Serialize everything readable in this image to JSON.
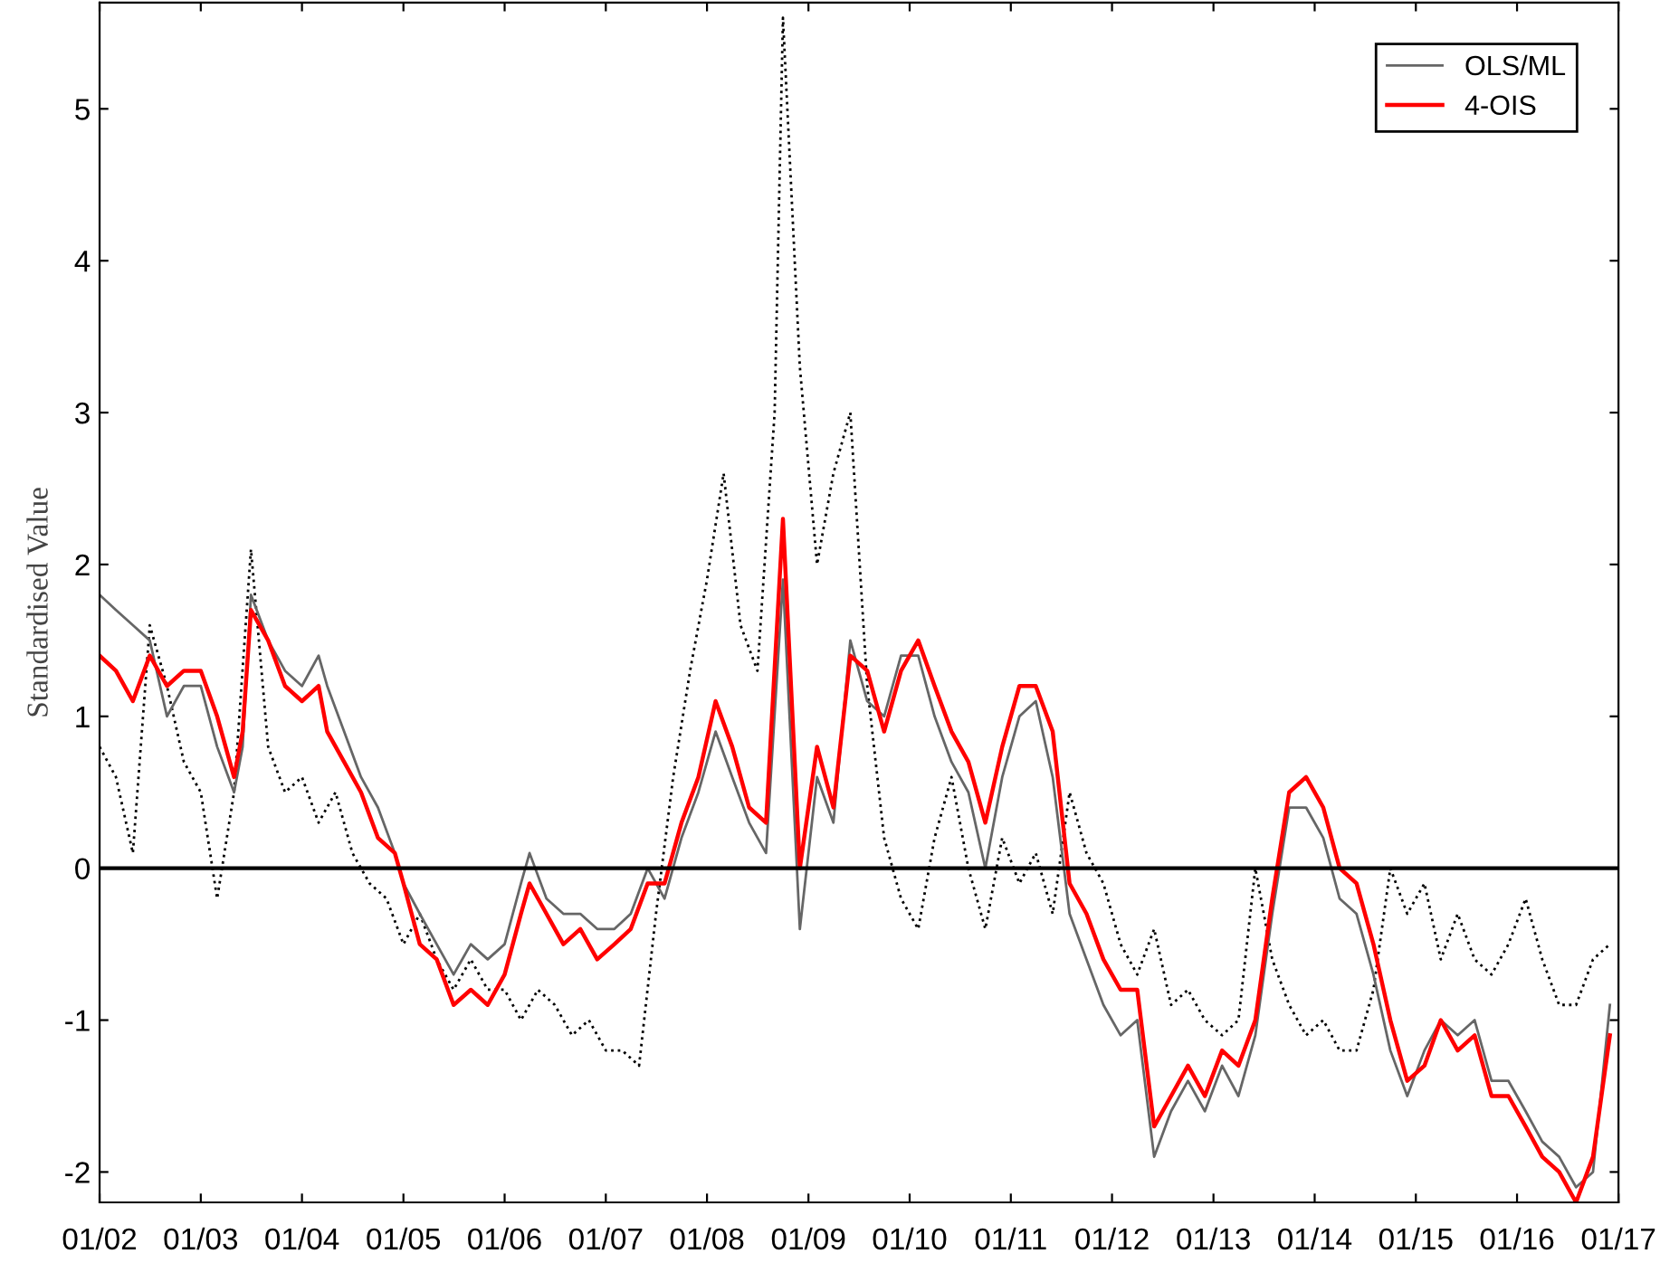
{
  "chart_data": {
    "type": "line",
    "ylabel": "Standardised Value",
    "xlim": [
      "2002-01-01",
      "2017-01-01"
    ],
    "ylim": [
      -2.2,
      5.7
    ],
    "xticks": [
      {
        "value": "2002-01-01",
        "label": "01/02"
      },
      {
        "value": "2003-01-01",
        "label": "01/03"
      },
      {
        "value": "2004-01-01",
        "label": "01/04"
      },
      {
        "value": "2005-01-01",
        "label": "01/05"
      },
      {
        "value": "2006-01-01",
        "label": "01/06"
      },
      {
        "value": "2007-01-01",
        "label": "01/07"
      },
      {
        "value": "2008-01-01",
        "label": "01/08"
      },
      {
        "value": "2009-01-01",
        "label": "01/09"
      },
      {
        "value": "2010-01-01",
        "label": "01/10"
      },
      {
        "value": "2011-01-01",
        "label": "01/11"
      },
      {
        "value": "2012-01-01",
        "label": "01/12"
      },
      {
        "value": "2013-01-01",
        "label": "01/13"
      },
      {
        "value": "2014-01-01",
        "label": "01/14"
      },
      {
        "value": "2015-01-01",
        "label": "01/15"
      },
      {
        "value": "2016-01-01",
        "label": "01/16"
      },
      {
        "value": "2017-01-01",
        "label": "01/17"
      }
    ],
    "yticks": [
      -2,
      -1,
      0,
      1,
      2,
      3,
      4,
      5
    ],
    "grid": false,
    "legend": "top right",
    "ref_lines": [
      {
        "axis": "y",
        "value": 0,
        "color": "#000000",
        "line_style": "solid"
      }
    ],
    "series": [
      {
        "color": "#000000",
        "line_style": "dotted",
        "x": [
          "2002-01",
          "2002-03",
          "2002-05",
          "2002-07",
          "2002-09",
          "2002-11",
          "2003-01",
          "2003-03",
          "2003-05",
          "2003-07",
          "2003-09",
          "2003-11",
          "2004-01",
          "2004-03",
          "2004-05",
          "2004-07",
          "2004-09",
          "2004-11",
          "2005-01",
          "2005-03",
          "2005-05",
          "2005-07",
          "2005-09",
          "2005-11",
          "2006-01",
          "2006-03",
          "2006-05",
          "2006-07",
          "2006-09",
          "2006-11",
          "2007-01",
          "2007-03",
          "2007-05",
          "2007-07",
          "2007-09",
          "2007-11",
          "2008-01",
          "2008-03",
          "2008-05",
          "2008-07",
          "2008-09",
          "2008-10",
          "2008-12",
          "2009-02",
          "2009-04",
          "2009-06",
          "2009-08",
          "2009-10",
          "2009-12",
          "2010-02",
          "2010-04",
          "2010-06",
          "2010-08",
          "2010-10",
          "2010-12",
          "2011-02",
          "2011-04",
          "2011-06",
          "2011-08",
          "2011-10",
          "2011-12",
          "2012-02",
          "2012-04",
          "2012-06",
          "2012-08",
          "2012-10",
          "2012-12",
          "2013-02",
          "2013-04",
          "2013-06",
          "2013-08",
          "2013-10",
          "2013-12",
          "2014-02",
          "2014-04",
          "2014-06",
          "2014-08",
          "2014-10",
          "2014-12",
          "2015-02",
          "2015-04",
          "2015-06",
          "2015-08",
          "2015-10",
          "2015-12",
          "2016-02",
          "2016-04",
          "2016-06",
          "2016-08",
          "2016-10",
          "2016-12"
        ],
        "values": [
          0.8,
          0.6,
          0.1,
          1.6,
          1.2,
          0.7,
          0.5,
          -0.2,
          0.5,
          2.1,
          0.8,
          0.5,
          0.6,
          0.3,
          0.5,
          0.1,
          -0.1,
          -0.2,
          -0.5,
          -0.3,
          -0.6,
          -0.8,
          -0.6,
          -0.8,
          -0.8,
          -1.0,
          -0.8,
          -0.9,
          -1.1,
          -1.0,
          -1.2,
          -1.2,
          -1.3,
          -0.3,
          0.6,
          1.3,
          1.9,
          2.6,
          1.6,
          1.3,
          3.0,
          5.6,
          3.3,
          2.0,
          2.6,
          3.0,
          1.2,
          0.2,
          -0.2,
          -0.4,
          0.2,
          0.6,
          0.0,
          -0.4,
          0.2,
          -0.1,
          0.1,
          -0.3,
          0.5,
          0.1,
          -0.1,
          -0.5,
          -0.7,
          -0.4,
          -0.9,
          -0.8,
          -1.0,
          -1.1,
          -1.0,
          0.0,
          -0.6,
          -0.9,
          -1.1,
          -1.0,
          -1.2,
          -1.2,
          -0.8,
          0.0,
          -0.3,
          -0.1,
          -0.6,
          -0.3,
          -0.6,
          -0.7,
          -0.5,
          -0.2,
          -0.6,
          -0.9,
          -0.9,
          -0.6,
          -0.5
        ]
      },
      {
        "name": "OLS/ML",
        "color": "#666666",
        "line_style": "solid",
        "x": [
          "2002-01",
          "2002-03",
          "2002-05",
          "2002-07",
          "2002-09",
          "2002-11",
          "2003-01",
          "2003-03",
          "2003-05",
          "2003-06",
          "2003-07",
          "2003-09",
          "2003-11",
          "2004-01",
          "2004-03",
          "2004-04",
          "2004-06",
          "2004-08",
          "2004-10",
          "2004-12",
          "2005-01",
          "2005-03",
          "2005-05",
          "2005-07",
          "2005-09",
          "2005-11",
          "2006-01",
          "2006-03",
          "2006-04",
          "2006-06",
          "2006-08",
          "2006-10",
          "2006-12",
          "2007-02",
          "2007-04",
          "2007-06",
          "2007-08",
          "2007-10",
          "2007-12",
          "2008-02",
          "2008-04",
          "2008-06",
          "2008-08",
          "2008-10",
          "2008-12",
          "2009-02",
          "2009-04",
          "2009-06",
          "2009-08",
          "2009-10",
          "2009-12",
          "2010-02",
          "2010-04",
          "2010-06",
          "2010-08",
          "2010-10",
          "2010-12",
          "2011-02",
          "2011-04",
          "2011-06",
          "2011-08",
          "2011-10",
          "2011-12",
          "2012-02",
          "2012-04",
          "2012-06",
          "2012-08",
          "2012-10",
          "2012-12",
          "2013-02",
          "2013-04",
          "2013-06",
          "2013-08",
          "2013-10",
          "2013-12",
          "2014-02",
          "2014-04",
          "2014-06",
          "2014-08",
          "2014-10",
          "2014-12",
          "2015-02",
          "2015-04",
          "2015-06",
          "2015-08",
          "2015-10",
          "2015-12",
          "2016-02",
          "2016-04",
          "2016-06",
          "2016-08",
          "2016-10",
          "2016-12"
        ],
        "values": [
          1.8,
          1.7,
          1.6,
          1.5,
          1.0,
          1.2,
          1.2,
          0.8,
          0.5,
          0.8,
          1.8,
          1.5,
          1.3,
          1.2,
          1.4,
          1.2,
          0.9,
          0.6,
          0.4,
          0.1,
          -0.1,
          -0.3,
          -0.5,
          -0.7,
          -0.5,
          -0.6,
          -0.5,
          -0.1,
          0.1,
          -0.2,
          -0.3,
          -0.3,
          -0.4,
          -0.4,
          -0.3,
          0.0,
          -0.2,
          0.2,
          0.5,
          0.9,
          0.6,
          0.3,
          0.1,
          1.9,
          -0.4,
          0.6,
          0.3,
          1.5,
          1.1,
          1.0,
          1.4,
          1.4,
          1.0,
          0.7,
          0.5,
          0.0,
          0.6,
          1.0,
          1.1,
          0.6,
          -0.3,
          -0.6,
          -0.9,
          -1.1,
          -1.0,
          -1.9,
          -1.6,
          -1.4,
          -1.6,
          -1.3,
          -1.5,
          -1.1,
          -0.3,
          0.4,
          0.4,
          0.2,
          -0.2,
          -0.3,
          -0.7,
          -1.2,
          -1.5,
          -1.2,
          -1.0,
          -1.1,
          -1.0,
          -1.4,
          -1.4,
          -1.6,
          -1.8,
          -1.9,
          -2.1,
          -2.0,
          -0.9
        ]
      },
      {
        "name": "4-OIS",
        "color": "#ff0000",
        "line_style": "solid",
        "x": [
          "2002-01",
          "2002-03",
          "2002-05",
          "2002-07",
          "2002-09",
          "2002-11",
          "2003-01",
          "2003-03",
          "2003-05",
          "2003-06",
          "2003-07",
          "2003-09",
          "2003-11",
          "2004-01",
          "2004-03",
          "2004-04",
          "2004-06",
          "2004-08",
          "2004-10",
          "2004-12",
          "2005-01",
          "2005-03",
          "2005-05",
          "2005-07",
          "2005-09",
          "2005-11",
          "2006-01",
          "2006-03",
          "2006-04",
          "2006-06",
          "2006-08",
          "2006-10",
          "2006-12",
          "2007-02",
          "2007-04",
          "2007-06",
          "2007-08",
          "2007-10",
          "2007-12",
          "2008-02",
          "2008-04",
          "2008-06",
          "2008-08",
          "2008-10",
          "2008-12",
          "2009-02",
          "2009-04",
          "2009-06",
          "2009-08",
          "2009-10",
          "2009-12",
          "2010-02",
          "2010-04",
          "2010-06",
          "2010-08",
          "2010-10",
          "2010-12",
          "2011-02",
          "2011-04",
          "2011-06",
          "2011-08",
          "2011-10",
          "2011-12",
          "2012-02",
          "2012-04",
          "2012-06",
          "2012-08",
          "2012-10",
          "2012-12",
          "2013-02",
          "2013-04",
          "2013-06",
          "2013-08",
          "2013-10",
          "2013-12",
          "2014-02",
          "2014-04",
          "2014-06",
          "2014-08",
          "2014-10",
          "2014-12",
          "2015-02",
          "2015-04",
          "2015-06",
          "2015-08",
          "2015-10",
          "2015-12",
          "2016-02",
          "2016-04",
          "2016-06",
          "2016-08",
          "2016-10",
          "2016-12"
        ],
        "values": [
          1.4,
          1.3,
          1.1,
          1.4,
          1.2,
          1.3,
          1.3,
          1.0,
          0.6,
          0.9,
          1.7,
          1.5,
          1.2,
          1.1,
          1.2,
          0.9,
          0.7,
          0.5,
          0.2,
          0.1,
          -0.1,
          -0.5,
          -0.6,
          -0.9,
          -0.8,
          -0.9,
          -0.7,
          -0.3,
          -0.1,
          -0.3,
          -0.5,
          -0.4,
          -0.6,
          -0.5,
          -0.4,
          -0.1,
          -0.1,
          0.3,
          0.6,
          1.1,
          0.8,
          0.4,
          0.3,
          2.3,
          0.0,
          0.8,
          0.4,
          1.4,
          1.3,
          0.9,
          1.3,
          1.5,
          1.2,
          0.9,
          0.7,
          0.3,
          0.8,
          1.2,
          1.2,
          0.9,
          -0.1,
          -0.3,
          -0.6,
          -0.8,
          -0.8,
          -1.7,
          -1.5,
          -1.3,
          -1.5,
          -1.2,
          -1.3,
          -1.0,
          -0.2,
          0.5,
          0.6,
          0.4,
          0.0,
          -0.1,
          -0.5,
          -1.0,
          -1.4,
          -1.3,
          -1.0,
          -1.2,
          -1.1,
          -1.5,
          -1.5,
          -1.7,
          -1.9,
          -2.0,
          -2.2,
          -1.9,
          -1.1
        ]
      }
    ]
  }
}
